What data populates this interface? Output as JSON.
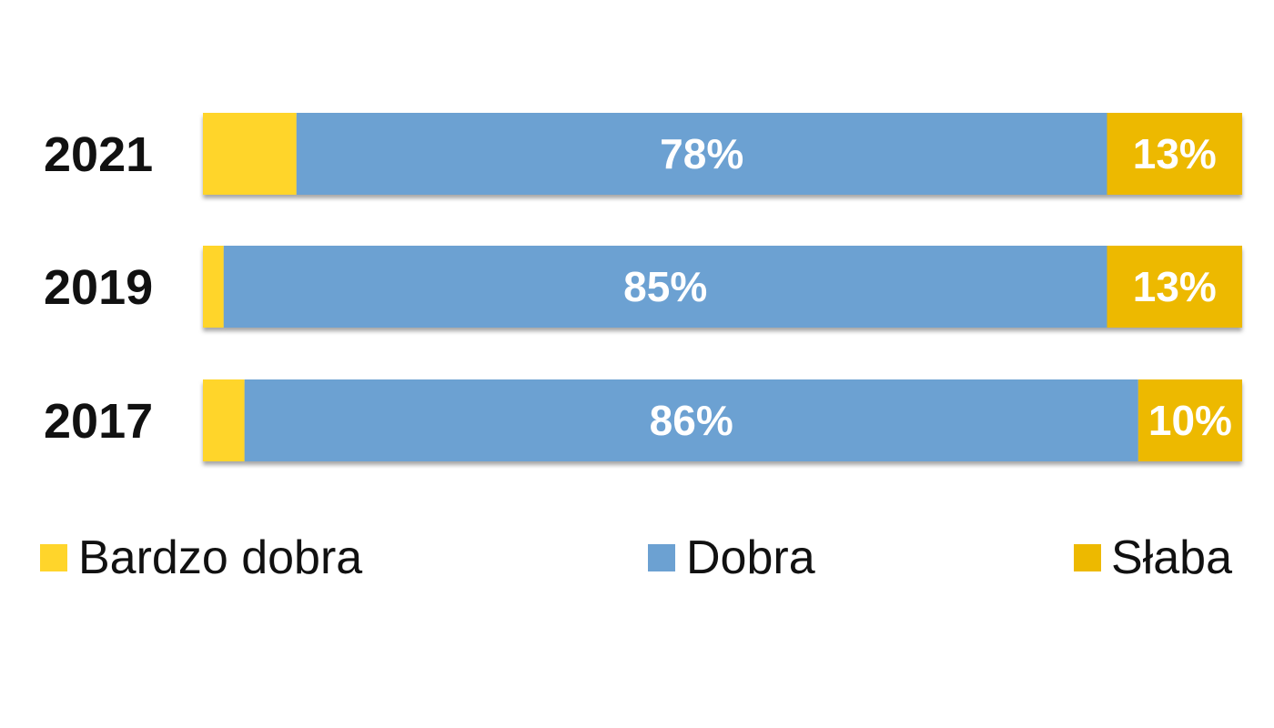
{
  "chart_data": {
    "type": "bar",
    "orientation": "horizontal",
    "stacked": true,
    "normalized": true,
    "categories": [
      "2021",
      "2019",
      "2017"
    ],
    "series": [
      {
        "name": "Bardzo dobra",
        "color": "#FFD52B",
        "values": [
          9,
          2,
          4
        ],
        "labels": [
          "",
          "",
          ""
        ]
      },
      {
        "name": "Dobra",
        "color": "#6CA1D2",
        "values": [
          78,
          85,
          86
        ],
        "labels": [
          "78%",
          "85%",
          "86%"
        ]
      },
      {
        "name": "Słaba",
        "color": "#EDB900",
        "values": [
          13,
          13,
          10
        ],
        "labels": [
          "13%",
          "13%",
          "10%"
        ]
      }
    ],
    "xlim": [
      0,
      100
    ],
    "grid": false,
    "legend_position": "bottom"
  }
}
